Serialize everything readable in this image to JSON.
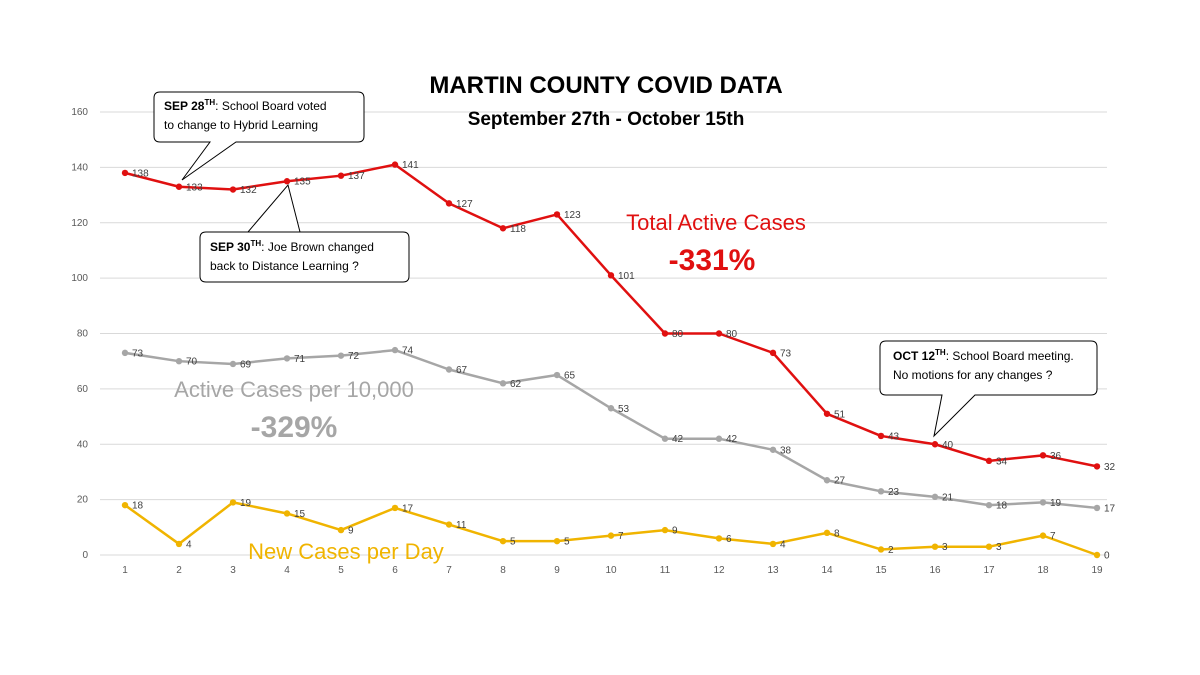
{
  "chart_data": {
    "type": "line",
    "title": "MARTIN COUNTY COVID DATA",
    "subtitle": "September 27th - October 15th",
    "x": [
      1,
      2,
      3,
      4,
      5,
      6,
      7,
      8,
      9,
      10,
      11,
      12,
      13,
      14,
      15,
      16,
      17,
      18,
      19
    ],
    "ylim": [
      0,
      160
    ],
    "yticks": [
      0,
      20,
      40,
      60,
      80,
      100,
      120,
      140,
      160
    ],
    "grid": true,
    "series": [
      {
        "name": "Total Active Cases",
        "color": "#e01010",
        "values": [
          138,
          133,
          132,
          135,
          137,
          141,
          127,
          118,
          123,
          101,
          80,
          80,
          73,
          51,
          43,
          40,
          34,
          36,
          32
        ],
        "label": "Total Active Cases",
        "change": "-331%"
      },
      {
        "name": "Active Cases per 10,000",
        "color": "#a6a6a6",
        "values": [
          73,
          70,
          69,
          71,
          72,
          74,
          67,
          62,
          65,
          53,
          42,
          42,
          38,
          27,
          23,
          21,
          18,
          19,
          17
        ],
        "label": "Active Cases per 10,000",
        "change": "-329%"
      },
      {
        "name": "New Cases per Day",
        "color": "#f0b400",
        "values": [
          18,
          4,
          19,
          15,
          9,
          17,
          11,
          5,
          5,
          7,
          9,
          6,
          4,
          8,
          2,
          3,
          3,
          7,
          0
        ],
        "label": "New Cases per Day"
      }
    ],
    "annotations": [
      {
        "date": "SEP 28",
        "sup": "TH",
        "lines": [
          "School Board voted",
          "to change to Hybrid Learning"
        ],
        "point_x": 2
      },
      {
        "date": "SEP 30",
        "sup": "TH",
        "lines": [
          "Joe Brown changed",
          "back to Distance Learning ?"
        ],
        "point_x": 4
      },
      {
        "date": "OCT 12",
        "sup": "TH",
        "lines": [
          "School Board meeting.",
          "No motions for any changes ?"
        ],
        "point_x": 16
      }
    ]
  }
}
